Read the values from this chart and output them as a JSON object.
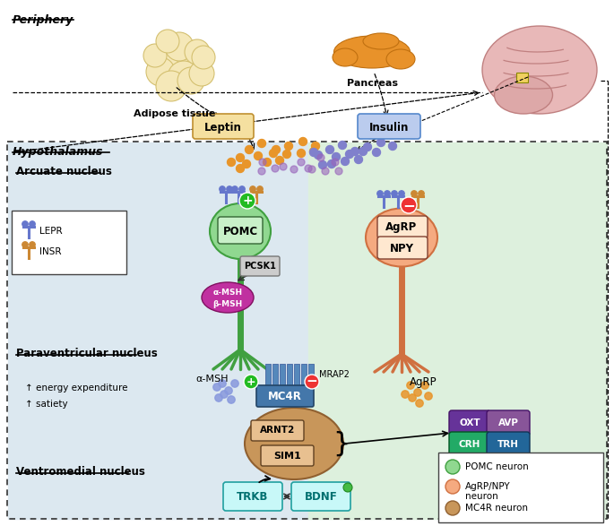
{
  "bg_white": "#ffffff",
  "bg_blue_light": "#dce8f0",
  "bg_green_light": "#ddf0dd",
  "periphery_label": "Periphery",
  "hypothalamus_label": "Hypothalamus",
  "arcuate_label": "Arcuate nucleus",
  "paraventricular_label": "Paraventricular nucleus",
  "ventromedial_label": "Ventromedial nucleus",
  "adipose_label": "Adipose tissue",
  "pancreas_label": "Pancreas",
  "leptin_label": "Leptin",
  "insulin_label": "Insulin",
  "pomc_label": "POMC",
  "pcsk1_label": "PCSK1",
  "alpha_msh_axon": "α-MSH",
  "agrp_label": "AgRP",
  "npy_label": "NPY",
  "agrp_axon": "AgRP",
  "mc4r_label": "MC4R",
  "mrap2_label": "MRAP2",
  "arnt2_label": "ARNT2",
  "sim1_label": "SIM1",
  "trkb_label": "TRKB",
  "bdnf_label": "BDNF",
  "oxt_label": "OXT",
  "avp_label": "AVP",
  "crh_label": "CRH",
  "trh_label": "TRH",
  "lepr_label": "LEPR",
  "insr_label": "INSR",
  "energy_exp": "↑ energy expenditure",
  "satiety": "↑ satiety",
  "pomc_neuron_color": "#90d890",
  "pomc_edge_color": "#40a040",
  "agrp_neuron_color": "#f5aa80",
  "agrp_edge_color": "#d07040",
  "mc4r_neuron_color": "#c8965a",
  "mc4r_edge_color": "#906030",
  "alpha_msh_beta_color": "#c030a0",
  "lepr_color": "#6677cc",
  "insr_color": "#cc8833",
  "dot_orange": "#e8952a",
  "dot_blue": "#8080cc",
  "dot_purple": "#9966bb",
  "oxt_color": "#663399",
  "avp_color": "#885599",
  "crh_color": "#22aa66",
  "trh_color": "#226699",
  "leptin_box_fill": "#f5e0a0",
  "leptin_box_edge": "#c09030",
  "insulin_box_fill": "#bbccee",
  "insulin_box_edge": "#5588cc"
}
